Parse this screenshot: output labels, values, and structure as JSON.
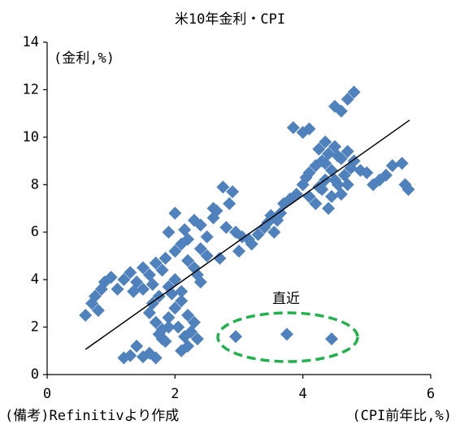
{
  "chart_data": {
    "type": "scatter",
    "title": "米10年金利・CPI",
    "y_label": "(金利,%)",
    "x_label": "(CPI前年比,%)",
    "source": "(備考)Refinitivより作成",
    "annotation": "直近",
    "color": "#4f81bd",
    "xlim": [
      0,
      6
    ],
    "xticks": [
      0,
      2,
      4,
      6
    ],
    "ylim": [
      0,
      14
    ],
    "yticks": [
      0,
      2,
      4,
      6,
      8,
      10,
      12,
      14
    ],
    "x": [
      0.6,
      0.7,
      0.75,
      0.8,
      0.85,
      0.9,
      1.0,
      1.1,
      1.2,
      1.3,
      1.35,
      1.4,
      1.5,
      1.5,
      1.6,
      1.65,
      1.7,
      1.75,
      1.8,
      1.85,
      1.6,
      1.7,
      1.8,
      1.9,
      2.0,
      2.1,
      2.2,
      1.65,
      1.75,
      1.85,
      1.95,
      2.05,
      2.15,
      2.25,
      2.35,
      1.9,
      2.0,
      2.1,
      2.3,
      2.4,
      1.2,
      1.3,
      1.4,
      1.5,
      1.6,
      1.7,
      2.1,
      1.8,
      1.9,
      2.2,
      1.9,
      2.0,
      2.2,
      2.4,
      2.6,
      2.75,
      2.9,
      2.95,
      2.5,
      2.3,
      3.0,
      2.7,
      2.1,
      2.3,
      2.5,
      2.6,
      2.8,
      2.2,
      2.4,
      2.65,
      2.85,
      3.05,
      2.0,
      2.15,
      2.35,
      3.2,
      3.4,
      3.5,
      3.6,
      3.7,
      3.9,
      4.0,
      3.3,
      3.45,
      3.65,
      3.8,
      3.55,
      3.15,
      4.05,
      4.1,
      4.2,
      4.25,
      4.3,
      4.35,
      4.4,
      4.45,
      4.5,
      4.55,
      4.6,
      4.65,
      4.7,
      4.75,
      4.8,
      4.2,
      4.3,
      4.4,
      4.5,
      4.6,
      4.1,
      4.35,
      4.55,
      4.25,
      4.45,
      4.7,
      4.9,
      3.85,
      4.0,
      4.1,
      4.5,
      4.6,
      4.7,
      4.8,
      4.35,
      4.5,
      5.0,
      5.2,
      5.4,
      5.55,
      5.6,
      5.65,
      5.1,
      5.3,
      2.95,
      3.75,
      4.45
    ],
    "y": [
      2.5,
      3.0,
      3.3,
      2.7,
      3.6,
      3.9,
      4.1,
      3.6,
      4.0,
      4.3,
      3.5,
      3.9,
      3.6,
      4.5,
      4.2,
      3.8,
      4.7,
      3.3,
      4.4,
      4.9,
      2.6,
      2.2,
      1.9,
      2.4,
      2.8,
      3.1,
      2.5,
      3.0,
      1.7,
      1.4,
      3.4,
      2.0,
      1.6,
      1.8,
      1.5,
      3.7,
      4.0,
      3.5,
      2.2,
      3.9,
      0.7,
      0.8,
      1.2,
      0.75,
      0.9,
      0.7,
      1.0,
      1.5,
      2.0,
      1.2,
      6.0,
      6.8,
      5.7,
      6.3,
      6.6,
      7.9,
      7.7,
      6.0,
      5.0,
      4.5,
      5.2,
      4.9,
      5.5,
      6.5,
      5.8,
      7.0,
      6.2,
      4.8,
      5.3,
      6.9,
      7.2,
      5.8,
      5.2,
      6.1,
      4.2,
      5.5,
      6.2,
      6.7,
      6.5,
      7.2,
      7.6,
      8.0,
      5.9,
      6.4,
      6.8,
      7.4,
      6.0,
      5.7,
      8.3,
      7.5,
      8.8,
      7.9,
      9.0,
      8.2,
      9.3,
      8.6,
      9.6,
      8.0,
      9.1,
      8.4,
      9.4,
      8.7,
      9.0,
      7.2,
      7.8,
      7.0,
      8.2,
      7.6,
      8.5,
      8.9,
      9.2,
      9.5,
      7.5,
      8.0,
      8.6,
      10.4,
      10.2,
      10.35,
      11.3,
      11.1,
      11.6,
      11.9,
      9.8,
      9.6,
      8.5,
      8.2,
      8.8,
      8.9,
      8.0,
      7.8,
      8.0,
      8.4,
      1.6,
      1.7,
      1.5
    ],
    "trendline": {
      "x": [
        0.6,
        5.67
      ],
      "y": [
        1.06,
        10.72
      ]
    }
  }
}
